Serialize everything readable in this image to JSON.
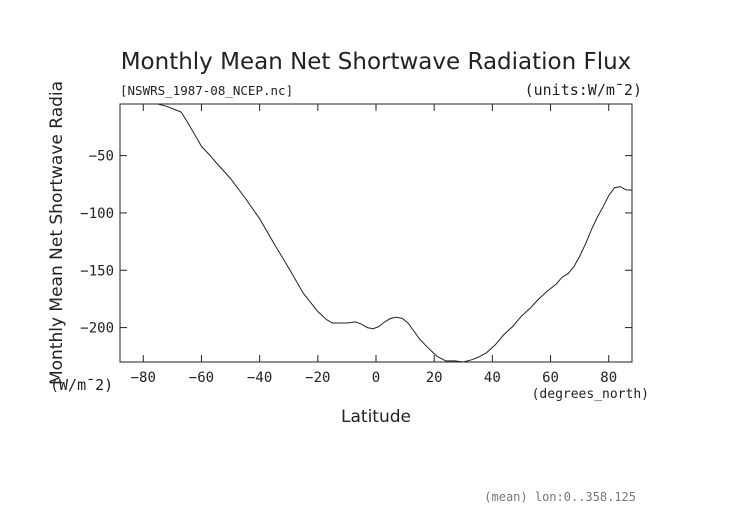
{
  "chart_data": {
    "type": "line",
    "title": "Monthly Mean Net Shortwave Radiation Flux",
    "subtitle_left": "[NSWRS_1987-08_NCEP.nc]",
    "subtitle_right": "(units:W/m¯2)",
    "xlabel": "Latitude",
    "xunits": "(degrees_north)",
    "ylabel": "Monthly Mean Net Shortwave Radia",
    "yunits": "(W/m¯2)",
    "footnote": "(mean) lon:0..358.125",
    "xlim": [
      -88,
      88
    ],
    "ylim": [
      -230,
      -5
    ],
    "xticks": [
      -80,
      -60,
      -40,
      -20,
      0,
      20,
      40,
      60,
      80
    ],
    "yticks": [
      -50,
      -100,
      -150,
      -200
    ],
    "grid": false,
    "series": [
      {
        "x": [
          -77,
          -75,
          -72,
          -70,
          -67,
          -65,
          -62,
          -60,
          -57,
          -55,
          -50,
          -45,
          -40,
          -35,
          -30,
          -25,
          -20,
          -17,
          -15,
          -12,
          -10,
          -7,
          -5,
          -3,
          -1,
          1,
          3,
          5,
          7,
          9,
          11,
          13,
          15,
          18,
          21,
          24,
          27,
          30,
          33,
          35,
          38,
          41,
          44,
          47,
          50,
          53,
          56,
          59,
          62,
          64,
          66,
          68,
          70,
          72,
          74,
          76,
          78,
          80,
          82,
          84,
          86,
          88
        ],
        "y": [
          -4,
          -5,
          -7,
          -9,
          -12,
          -20,
          -33,
          -42,
          -50,
          -56,
          -70,
          -87,
          -105,
          -127,
          -148,
          -170,
          -186,
          -193,
          -196,
          -196,
          -196,
          -195,
          -197,
          -200,
          -201,
          -199,
          -195,
          -192,
          -191,
          -192,
          -196,
          -203,
          -210,
          -218,
          -225,
          -229,
          -229,
          -230,
          -228,
          -226,
          -222,
          -215,
          -206,
          -199,
          -190,
          -183,
          -175,
          -168,
          -162,
          -156,
          -153,
          -147,
          -138,
          -127,
          -115,
          -104,
          -95,
          -85,
          -78,
          -77,
          -80,
          -80
        ]
      }
    ]
  }
}
